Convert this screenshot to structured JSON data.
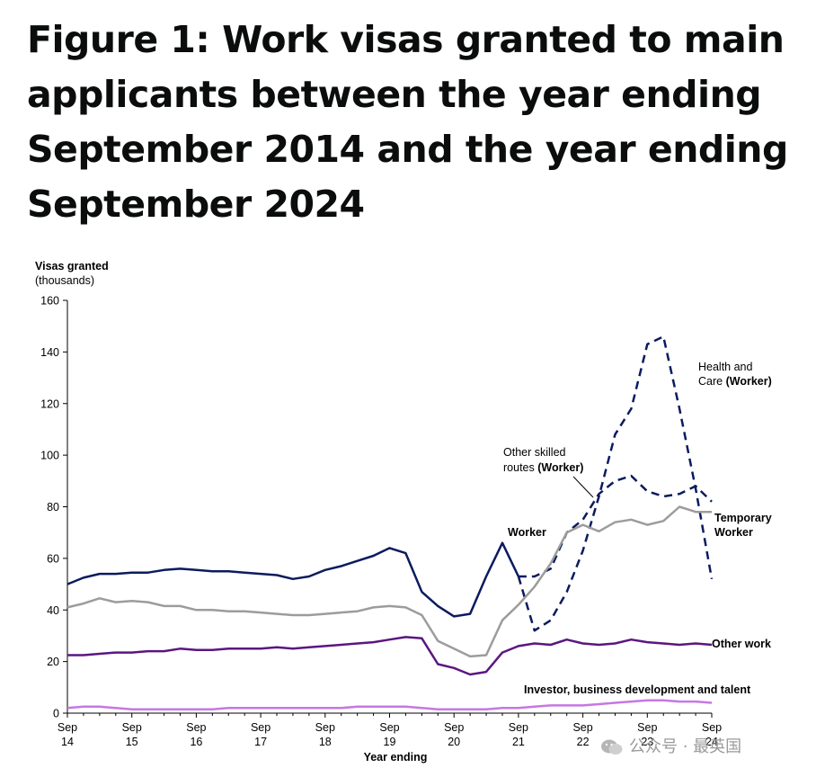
{
  "title": "Figure 1: Work visas granted to main applicants between the year ending September 2014 and the year ending September 2024",
  "watermark": "公众号 · 最英国",
  "chart_data": {
    "type": "line",
    "ylabel": "Visas granted",
    "ylabel_sub": "(thousands)",
    "xlabel": "Year ending",
    "ylim": [
      0,
      160
    ],
    "yticks": [
      0,
      20,
      40,
      60,
      80,
      100,
      120,
      140,
      160
    ],
    "xticks": [
      {
        "q": 0,
        "top": "Sep",
        "bottom": "14"
      },
      {
        "q": 4,
        "top": "Sep",
        "bottom": "15"
      },
      {
        "q": 8,
        "top": "Sep",
        "bottom": "16"
      },
      {
        "q": 12,
        "top": "Sep",
        "bottom": "17"
      },
      {
        "q": 16,
        "top": "Sep",
        "bottom": "18"
      },
      {
        "q": 20,
        "top": "Sep",
        "bottom": "19"
      },
      {
        "q": 24,
        "top": "Sep",
        "bottom": "20"
      },
      {
        "q": 28,
        "top": "Sep",
        "bottom": "21"
      },
      {
        "q": 32,
        "top": "Sep",
        "bottom": "22"
      },
      {
        "q": 36,
        "top": "Sep",
        "bottom": "23"
      },
      {
        "q": 40,
        "top": "Sep",
        "bottom": "24"
      }
    ],
    "x_note": "Quarters from year ending Sep 14 (0) to year ending Sep 24 (40)",
    "grid": false,
    "series": [
      {
        "name": "Worker",
        "color": "#0b1b5e",
        "dash": false,
        "x": [
          0,
          1,
          2,
          3,
          4,
          5,
          6,
          7,
          8,
          9,
          10,
          11,
          12,
          13,
          14,
          15,
          16,
          17,
          18,
          19,
          20,
          21,
          22,
          23,
          24,
          25,
          26,
          27,
          28
        ],
        "values": [
          50,
          52.5,
          54,
          54,
          54.5,
          54.5,
          55.5,
          56,
          55.5,
          55,
          55,
          54.5,
          54,
          53.5,
          52,
          53,
          55.5,
          57,
          59,
          61,
          64,
          62,
          47,
          41.5,
          37.5,
          38.5,
          53,
          66,
          53
        ]
      },
      {
        "name": "Health and Care (Worker)",
        "color": "#0b1b5e",
        "dash": true,
        "x": [
          28,
          29,
          30,
          31,
          32,
          33,
          34,
          35,
          36,
          37,
          38,
          39,
          40
        ],
        "values": [
          53,
          32,
          36,
          47,
          63,
          84,
          108,
          118,
          143,
          146,
          118,
          87,
          52
        ]
      },
      {
        "name": "Other skilled routes (Worker)",
        "color": "#0b1b5e",
        "dash": true,
        "x": [
          28,
          29,
          30,
          31,
          32,
          33,
          34,
          35,
          36,
          37,
          38,
          39,
          40
        ],
        "values": [
          53,
          53,
          56,
          70,
          75,
          85,
          90,
          92,
          86,
          84,
          85,
          88,
          82
        ]
      },
      {
        "name": "Temporary Worker",
        "color": "#9c9c9c",
        "dash": false,
        "x": [
          0,
          1,
          2,
          3,
          4,
          5,
          6,
          7,
          8,
          9,
          10,
          11,
          12,
          13,
          14,
          15,
          16,
          17,
          18,
          19,
          20,
          21,
          22,
          23,
          24,
          25,
          26,
          27,
          28,
          29,
          30,
          31,
          32,
          33,
          34,
          35,
          36,
          37,
          38,
          39,
          40
        ],
        "values": [
          41,
          42.5,
          44.5,
          43,
          43.5,
          43,
          41.5,
          41.5,
          40,
          40,
          39.5,
          39.5,
          39,
          38.5,
          38,
          38,
          38.5,
          39,
          39.5,
          41,
          41.5,
          41,
          38,
          28,
          25,
          22,
          22.5,
          36,
          42,
          49,
          58,
          70,
          73,
          70.5,
          74,
          75,
          73,
          74.5,
          80,
          78,
          78
        ]
      },
      {
        "name": "Other work",
        "color": "#5b1680",
        "dash": false,
        "x": [
          0,
          1,
          2,
          3,
          4,
          5,
          6,
          7,
          8,
          9,
          10,
          11,
          12,
          13,
          14,
          15,
          16,
          17,
          18,
          19,
          20,
          21,
          22,
          23,
          24,
          25,
          26,
          27,
          28,
          29,
          30,
          31,
          32,
          33,
          34,
          35,
          36,
          37,
          38,
          39,
          40
        ],
        "values": [
          22.5,
          22.5,
          23,
          23.5,
          23.5,
          24,
          24,
          25,
          24.5,
          24.5,
          25,
          25,
          25,
          25.5,
          25,
          25.5,
          26,
          26.5,
          27,
          27.5,
          28.5,
          29.5,
          29,
          19,
          17.5,
          15,
          16,
          23.5,
          26,
          27,
          26.5,
          28.5,
          27,
          26.5,
          27,
          28.5,
          27.5,
          27,
          26.5,
          27,
          26.5
        ]
      },
      {
        "name": "Investor, business development and talent",
        "color": "#c777e3",
        "dash": false,
        "x": [
          0,
          1,
          2,
          3,
          4,
          5,
          6,
          7,
          8,
          9,
          10,
          11,
          12,
          13,
          14,
          15,
          16,
          17,
          18,
          19,
          20,
          21,
          22,
          23,
          24,
          25,
          26,
          27,
          28,
          29,
          30,
          31,
          32,
          33,
          34,
          35,
          36,
          37,
          38,
          39,
          40
        ],
        "values": [
          2,
          2.5,
          2.5,
          2,
          1.5,
          1.5,
          1.5,
          1.5,
          1.5,
          1.5,
          2,
          2,
          2,
          2,
          2,
          2,
          2,
          2,
          2.5,
          2.5,
          2.5,
          2.5,
          2,
          1.5,
          1.5,
          1.5,
          1.5,
          2,
          2,
          2.5,
          3,
          3,
          3,
          3.5,
          4,
          4.5,
          5,
          5,
          4.5,
          4.5,
          4
        ]
      }
    ],
    "annotations": [
      {
        "key": "worker",
        "text": "Worker",
        "bold": true
      },
      {
        "key": "hc1",
        "text": "Health and",
        "bold": false
      },
      {
        "key": "hc2a",
        "text": "Care ",
        "bold": false
      },
      {
        "key": "hc2b",
        "text": "(Worker)",
        "bold": true
      },
      {
        "key": "osr1",
        "text": "Other skilled",
        "bold": false
      },
      {
        "key": "osr2a",
        "text": "routes ",
        "bold": false
      },
      {
        "key": "osr2b",
        "text": "(Worker)",
        "bold": true
      },
      {
        "key": "tw1",
        "text": "Temporary",
        "bold": true
      },
      {
        "key": "tw2",
        "text": "Worker",
        "bold": true
      },
      {
        "key": "ow",
        "text": "Other work",
        "bold": true
      },
      {
        "key": "inv",
        "text": "Investor, business development and talent",
        "bold": true
      }
    ]
  }
}
